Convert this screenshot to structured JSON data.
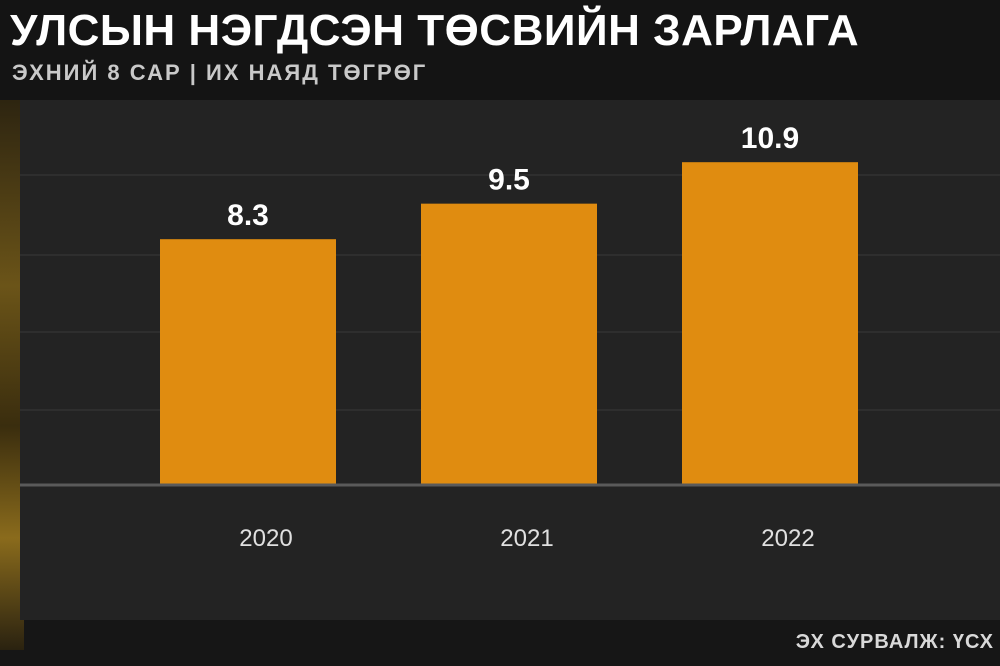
{
  "header": {
    "title": "УЛСЫН НЭГДСЭН ТӨСВИЙН ЗАРЛАГА",
    "subtitle": "ЭХНИЙ 8 САР | ИХ НАЯД ТӨГРӨГ"
  },
  "footer": {
    "source": "ЭХ СУРВАЛЖ: ҮСХ"
  },
  "colors": {
    "bar": "#e08c10",
    "background": "#232323",
    "grid": "#3a3a3a",
    "baseline": "#5a5a5a",
    "value_label": "#ffffff",
    "tick_label": "#e0e0e0"
  },
  "chart_data": {
    "type": "bar",
    "categories": [
      "2020",
      "2021",
      "2022"
    ],
    "values": [
      8.3,
      9.5,
      10.9
    ],
    "data_labels": [
      "8.3",
      "9.5",
      "10.9"
    ],
    "ylim": [
      0,
      13
    ],
    "grid": true,
    "legend": "none"
  }
}
